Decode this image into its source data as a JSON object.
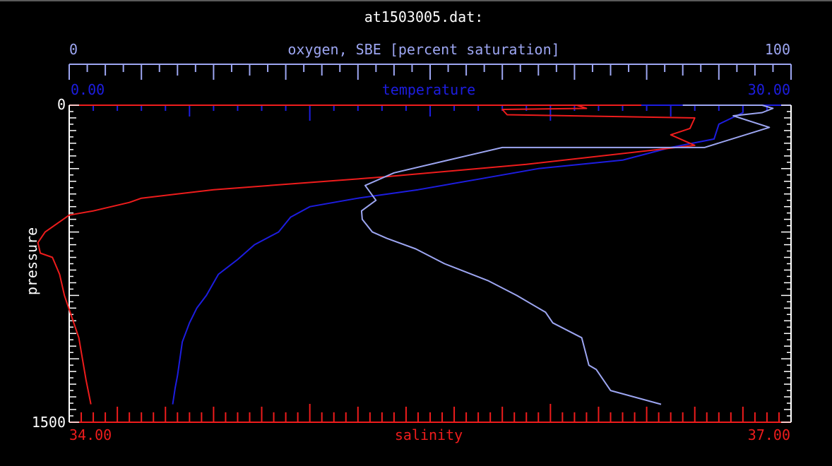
{
  "chart_data": {
    "type": "line",
    "title": "at1503005.dat:",
    "y_axis": {
      "label": "pressure",
      "range": [
        0,
        1500
      ],
      "min_label": "0",
      "max_label": "1500",
      "inverted": true
    },
    "axes": {
      "oxygen": {
        "label": "oxygen, SBE [percent saturation]",
        "range": [
          0,
          100
        ],
        "min_label": "0",
        "max_label": "100",
        "color": "#9da6f2"
      },
      "temperature": {
        "label": "temperature",
        "range": [
          0,
          30
        ],
        "min_label": "0.00",
        "max_label": "30.00",
        "color": "#1d1de0"
      },
      "salinity": {
        "label": "salinity",
        "range": [
          34,
          37
        ],
        "min_label": "34.00",
        "max_label": "37.00",
        "color": "#ee1c1c"
      }
    },
    "series": [
      {
        "axis": "temperature",
        "x": [
          28.0,
          28.0,
          27.0,
          26.8,
          25.0,
          23.0,
          19.5,
          17.0,
          14.5,
          12.0,
          10.0,
          9.2,
          8.7,
          7.7,
          7.0,
          6.2,
          5.7,
          5.3,
          5.0,
          4.7,
          4.6,
          4.5,
          4.4,
          4.3
        ],
        "y": [
          0,
          35,
          90,
          160,
          200,
          260,
          300,
          350,
          400,
          440,
          480,
          530,
          600,
          660,
          730,
          800,
          900,
          960,
          1030,
          1120,
          1200,
          1280,
          1340,
          1415
        ]
      },
      {
        "axis": "salinity",
        "x": [
          36.11,
          36.15,
          35.8,
          35.82,
          36.6,
          36.58,
          36.5,
          36.6,
          35.9,
          35.3,
          34.6,
          34.3,
          34.25,
          34.1,
          34.0,
          33.95,
          33.9,
          33.87,
          33.88,
          33.93,
          33.96,
          33.98,
          34.01,
          34.04,
          34.07,
          34.09
        ],
        "y": [
          0,
          15,
          20,
          45,
          60,
          110,
          140,
          190,
          280,
          340,
          400,
          440,
          460,
          500,
          520,
          560,
          600,
          650,
          700,
          720,
          800,
          900,
          1000,
          1100,
          1300,
          1415
        ]
      },
      {
        "axis": "oxygen",
        "x": [
          85,
          96,
          97.5,
          96,
          92,
          97,
          88,
          60,
          55,
          45,
          41,
          42.5,
          40.5,
          40.6,
          42,
          44,
          48,
          52,
          58,
          62,
          66,
          67,
          71,
          72,
          73,
          75,
          82
        ],
        "y": [
          0,
          0,
          15,
          35,
          50,
          105,
          200,
          200,
          240,
          320,
          380,
          450,
          500,
          540,
          600,
          630,
          680,
          750,
          830,
          900,
          980,
          1030,
          1100,
          1230,
          1250,
          1350,
          1415
        ]
      }
    ]
  }
}
